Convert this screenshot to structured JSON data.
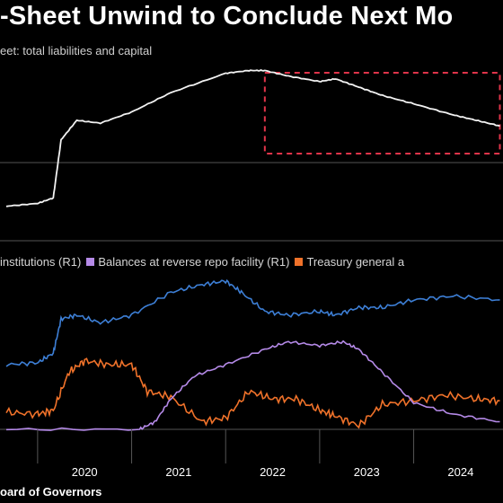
{
  "header": {
    "title": "-Sheet Unwind to Conclude Next Mo",
    "subtitle": "eet: total liabilities and capital"
  },
  "legend": {
    "item1": "institutions (R1)",
    "item2": "Balances at reverse repo facility (R1)",
    "item3": "Treasury general a"
  },
  "source": "oard of Governors",
  "colors": {
    "top_line": "#f2f2f2",
    "blue": "#3d7fd6",
    "purple": "#b58ae8",
    "orange": "#f0722a",
    "highlight": "#e0344a",
    "grid": "#555555"
  },
  "chart_data": [
    {
      "type": "line",
      "title": "",
      "series": [
        {
          "x": [
            "2019-09",
            "2020-01",
            "2020-03",
            "2020-04",
            "2020-06",
            "2020-09",
            "2021-01",
            "2021-06",
            "2022-01",
            "2022-04",
            "2022-06",
            "2022-09",
            "2023-01",
            "2023-03",
            "2023-06",
            "2023-09",
            "2024-01",
            "2024-06",
            "2024-09",
            "2024-12"
          ],
          "values": [
            4.0,
            4.1,
            4.3,
            6.4,
            7.1,
            7.0,
            7.4,
            8.1,
            8.8,
            8.9,
            8.9,
            8.7,
            8.5,
            8.6,
            8.3,
            8.0,
            7.7,
            7.3,
            7.1,
            6.9
          ]
        }
      ],
      "highlight_box": {
        "from": "2022-06",
        "to": "2024-12"
      }
    },
    {
      "type": "line",
      "title": "",
      "series": [
        {
          "name": "institutions (R1)",
          "x": [
            "2019-09",
            "2020-01",
            "2020-03",
            "2020-04",
            "2020-06",
            "2020-09",
            "2021-01",
            "2021-06",
            "2021-10",
            "2022-01",
            "2022-03",
            "2022-06",
            "2022-09",
            "2023-01",
            "2023-03",
            "2023-06",
            "2023-09",
            "2024-01",
            "2024-06",
            "2024-12"
          ],
          "values": [
            1.7,
            1.75,
            2.0,
            2.9,
            3.0,
            2.8,
            3.0,
            3.6,
            3.8,
            3.9,
            3.6,
            3.1,
            3.0,
            3.1,
            3.0,
            3.2,
            3.2,
            3.4,
            3.5,
            3.4
          ]
        },
        {
          "name": "Balances at reverse repo facility (R1)",
          "x": [
            "2019-09",
            "2021-02",
            "2021-04",
            "2021-06",
            "2021-09",
            "2022-01",
            "2022-06",
            "2022-09",
            "2023-01",
            "2023-04",
            "2023-06",
            "2023-09",
            "2024-01",
            "2024-06",
            "2024-12"
          ],
          "values": [
            0.0,
            0.0,
            0.2,
            0.8,
            1.4,
            1.7,
            2.1,
            2.3,
            2.2,
            2.3,
            2.1,
            1.5,
            0.7,
            0.4,
            0.2
          ]
        },
        {
          "name": "Treasury general a",
          "x": [
            "2019-09",
            "2020-01",
            "2020-03",
            "2020-05",
            "2020-07",
            "2020-10",
            "2021-01",
            "2021-03",
            "2021-06",
            "2021-10",
            "2022-01",
            "2022-04",
            "2022-07",
            "2022-10",
            "2023-01",
            "2023-03",
            "2023-06",
            "2023-09",
            "2024-01",
            "2024-05",
            "2024-09",
            "2024-12"
          ],
          "values": [
            0.45,
            0.4,
            0.5,
            1.5,
            1.8,
            1.7,
            1.7,
            1.0,
            0.85,
            0.2,
            0.3,
            1.0,
            0.8,
            0.8,
            0.5,
            0.35,
            0.1,
            0.65,
            0.75,
            0.9,
            0.8,
            0.75
          ]
        }
      ],
      "categories": [
        "2020",
        "2021",
        "2022",
        "2023",
        "2024"
      ]
    }
  ]
}
